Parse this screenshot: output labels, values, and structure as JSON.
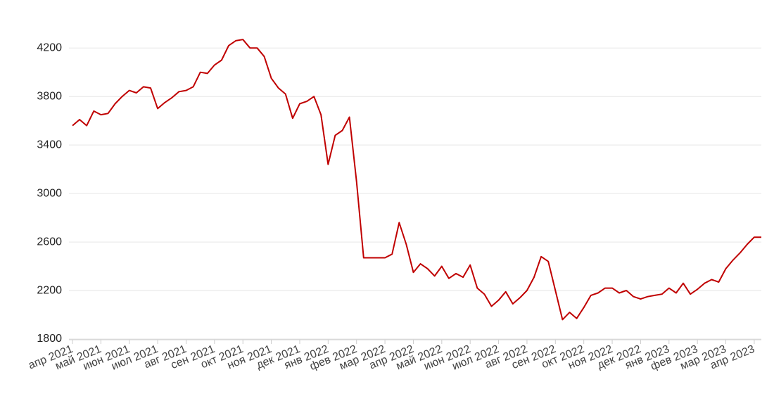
{
  "chart_data": {
    "type": "line",
    "color": "#c00000",
    "categories": [
      "апр 2021",
      null,
      null,
      null,
      "май 2021",
      null,
      null,
      null,
      "июн 2021",
      null,
      null,
      null,
      "июл 2021",
      null,
      null,
      null,
      "авг 2021",
      null,
      null,
      null,
      "сен 2021",
      null,
      null,
      null,
      "окт 2021",
      null,
      null,
      null,
      "ноя 2021",
      null,
      null,
      null,
      "дек 2021",
      null,
      null,
      null,
      "янв 2022",
      null,
      null,
      null,
      "фев 2022",
      null,
      null,
      null,
      "мар 2022",
      null,
      null,
      null,
      "апр 2022",
      null,
      null,
      null,
      "май 2022",
      null,
      null,
      null,
      "июн 2022",
      null,
      null,
      null,
      "июл 2022",
      null,
      null,
      null,
      "авг 2022",
      null,
      null,
      null,
      "сен 2022",
      null,
      null,
      null,
      "окт 2022",
      null,
      null,
      null,
      "ноя 2022",
      null,
      null,
      null,
      "дек 2022",
      null,
      null,
      null,
      "янв 2023",
      null,
      null,
      null,
      "фев 2023",
      null,
      null,
      null,
      "мар 2023",
      null,
      null,
      null,
      "апр 2023",
      null
    ],
    "values": [
      3560,
      3610,
      3560,
      3680,
      3650,
      3660,
      3740,
      3800,
      3850,
      3830,
      3880,
      3870,
      3700,
      3750,
      3790,
      3840,
      3850,
      3880,
      4000,
      3990,
      4060,
      4100,
      4220,
      4260,
      4270,
      4200,
      4200,
      4130,
      3950,
      3870,
      3820,
      3620,
      3740,
      3760,
      3800,
      3650,
      3240,
      3480,
      3520,
      3630,
      3100,
      2470,
      2470,
      2470,
      2470,
      2500,
      2760,
      2580,
      2350,
      2420,
      2380,
      2320,
      2400,
      2300,
      2340,
      2310,
      2410,
      2220,
      2170,
      2070,
      2120,
      2190,
      2090,
      2140,
      2200,
      2310,
      2480,
      2440,
      2200,
      1960,
      2020,
      1970,
      2060,
      2160,
      2180,
      2220,
      2220,
      2180,
      2200,
      2150,
      2130,
      2150,
      2160,
      2170,
      2220,
      2180,
      2260,
      2170,
      2210,
      2260,
      2290,
      2270,
      2380,
      2450,
      2510,
      2580,
      2640,
      2640
    ],
    "ylim": [
      1800,
      4300
    ],
    "yticks": [
      1800,
      2200,
      2600,
      3000,
      3400,
      3800,
      4200
    ],
    "grid": true
  }
}
